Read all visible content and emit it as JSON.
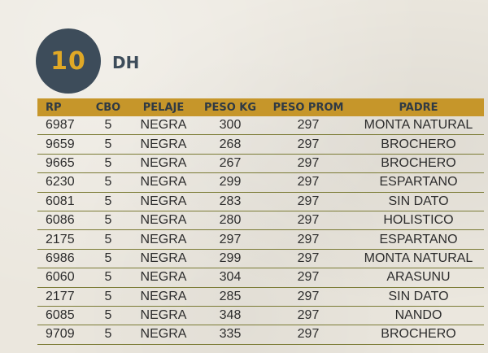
{
  "header": {
    "lot_number": "10",
    "category": "DH"
  },
  "table": {
    "columns": [
      "RP",
      "CBO",
      "PELAJE",
      "PESO KG",
      "PESO PROM",
      "PADRE"
    ],
    "rows": [
      [
        "6987",
        "5",
        "NEGRA",
        "300",
        "297",
        "MONTA NATURAL"
      ],
      [
        "9659",
        "5",
        "NEGRA",
        "268",
        "297",
        "BROCHERO"
      ],
      [
        "9665",
        "5",
        "NEGRA",
        "267",
        "297",
        "BROCHERO"
      ],
      [
        "6230",
        "5",
        "NEGRA",
        "299",
        "297",
        "ESPARTANO"
      ],
      [
        "6081",
        "5",
        "NEGRA",
        "283",
        "297",
        "SIN DATO"
      ],
      [
        "6086",
        "5",
        "NEGRA",
        "280",
        "297",
        "HOLISTICO"
      ],
      [
        "2175",
        "5",
        "NEGRA",
        "297",
        "297",
        "ESPARTANO"
      ],
      [
        "6986",
        "5",
        "NEGRA",
        "299",
        "297",
        "MONTA NATURAL"
      ],
      [
        "6060",
        "5",
        "NEGRA",
        "304",
        "297",
        "ARASUNU"
      ],
      [
        "2177",
        "5",
        "NEGRA",
        "285",
        "297",
        "SIN DATO"
      ],
      [
        "6085",
        "5",
        "NEGRA",
        "348",
        "297",
        "NANDO"
      ],
      [
        "9709",
        "5",
        "NEGRA",
        "335",
        "297",
        "BROCHERO"
      ]
    ]
  },
  "colors": {
    "badge": "#3d4c5a",
    "badge_text": "#e0a826",
    "header_row": "#c6962a",
    "row_divider": "#7b7b35",
    "background": "#ebe7de"
  }
}
